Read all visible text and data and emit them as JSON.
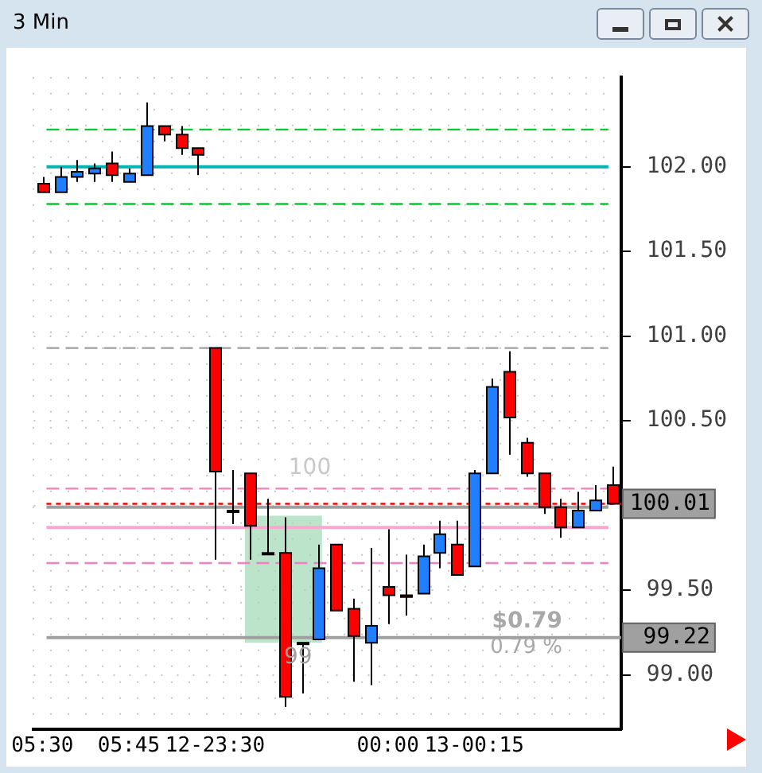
{
  "chart_data": {
    "type": "candlestick",
    "title": "3 Min",
    "categories": [
      "05:30",
      null,
      null,
      null,
      null,
      "05:45",
      null,
      null,
      null,
      null,
      "12-23:30",
      null,
      null,
      null,
      null,
      null,
      null,
      null,
      null,
      null,
      "00:00",
      null,
      null,
      null,
      null,
      "13-00:15",
      null,
      null,
      null,
      null,
      null,
      null,
      null,
      null
    ],
    "ohlc": [
      [
        101.9,
        101.94,
        101.85,
        101.85
      ],
      [
        101.85,
        102.0,
        101.85,
        101.94
      ],
      [
        101.94,
        102.04,
        101.91,
        101.97
      ],
      [
        101.96,
        102.02,
        101.91,
        101.99
      ],
      [
        102.02,
        102.09,
        101.91,
        101.95
      ],
      [
        101.91,
        101.99,
        101.91,
        101.96
      ],
      [
        101.95,
        102.38,
        101.95,
        102.24
      ],
      [
        102.24,
        102.24,
        102.15,
        102.19
      ],
      [
        102.19,
        102.24,
        102.07,
        102.11
      ],
      [
        102.11,
        102.11,
        101.95,
        102.07
      ],
      [
        100.93,
        100.93,
        99.68,
        100.2
      ],
      [
        99.97,
        100.21,
        99.89,
        99.97
      ],
      [
        100.19,
        100.19,
        99.68,
        99.88
      ],
      [
        99.72,
        100.04,
        99.72,
        99.72
      ],
      [
        99.72,
        99.93,
        98.81,
        98.87
      ],
      [
        99.19,
        99.19,
        98.89,
        99.19
      ],
      [
        99.21,
        99.77,
        99.21,
        99.63
      ],
      [
        99.77,
        99.77,
        99.38,
        99.38
      ],
      [
        99.39,
        99.45,
        98.96,
        99.23
      ],
      [
        99.19,
        99.75,
        98.94,
        99.29
      ],
      [
        99.52,
        99.86,
        99.3,
        99.47
      ],
      [
        99.47,
        99.71,
        99.35,
        99.46
      ],
      [
        99.48,
        99.77,
        99.48,
        99.7
      ],
      [
        99.72,
        99.91,
        99.63,
        99.83
      ],
      [
        99.77,
        99.91,
        99.59,
        99.59
      ],
      [
        99.64,
        100.21,
        99.64,
        100.19
      ],
      [
        100.19,
        100.75,
        100.19,
        100.7
      ],
      [
        100.79,
        100.91,
        100.3,
        100.52
      ],
      [
        100.37,
        100.4,
        100.17,
        100.19
      ],
      [
        100.19,
        100.19,
        99.95,
        99.99
      ],
      [
        99.99,
        100.04,
        99.81,
        99.87
      ],
      [
        99.87,
        100.08,
        99.87,
        99.97
      ],
      [
        99.97,
        100.12,
        99.97,
        100.03
      ],
      [
        100.12,
        100.23,
        100.01,
        100.01
      ]
    ],
    "colors": [
      "#ff0000",
      "#1f7fff",
      "#1f7fff",
      "#1f7fff",
      "#ff0000",
      "#1f7fff",
      "#1f7fff",
      "#ff0000",
      "#ff0000",
      "#ff0000",
      "#ff0000",
      "#1f7fff",
      "#ff0000",
      "#ff0000",
      "#ff0000",
      "#1f7fff",
      "#1f7fff",
      "#ff0000",
      "#ff0000",
      "#1f7fff",
      "#ff0000",
      "#ff0000",
      "#1f7fff",
      "#1f7fff",
      "#ff0000",
      "#1f7fff",
      "#1f7fff",
      "#ff0000",
      "#ff0000",
      "#ff0000",
      "#ff0000",
      "#1f7fff",
      "#1f7fff",
      "#ff0000"
    ],
    "ylim": [
      98.68,
      102.53
    ],
    "yticks": [
      {
        "value": 99,
        "label": "99.00"
      },
      {
        "value": 99.5,
        "label": "99.50"
      },
      {
        "value": 100,
        "label": null
      },
      {
        "value": 100.5,
        "label": "100.50"
      },
      {
        "value": 101,
        "label": "101.00"
      },
      {
        "value": 101.5,
        "label": "101.50"
      },
      {
        "value": 102,
        "label": "102.00"
      }
    ],
    "grid": true,
    "ref_lines": [
      {
        "axis": "y",
        "value": 102.22,
        "color": "#00cc33",
        "line_style": "dashed"
      },
      {
        "axis": "y",
        "value": 101.78,
        "color": "#00cc33",
        "line_style": "dashed"
      },
      {
        "axis": "y",
        "value": 102.0,
        "color": "#00b3b3",
        "line_style": "solid"
      },
      {
        "axis": "y",
        "value": 100.93,
        "color": "#a0a0a0",
        "line_style": "dashed"
      },
      {
        "axis": "y",
        "value": 100.1,
        "color": "#f080c0",
        "line_style": "dashed"
      },
      {
        "axis": "y",
        "value": 99.66,
        "color": "#f080c0",
        "line_style": "dashed"
      },
      {
        "axis": "y",
        "value": 99.87,
        "color": "#f8a8d0",
        "line_style": "solid"
      },
      {
        "axis": "y",
        "value": 99.99,
        "color": "#a0a0a0",
        "line_style": "solid"
      },
      {
        "axis": "y",
        "value": 100.01,
        "label": "100.01",
        "color": "#ff0000",
        "line_style": "dotted"
      },
      {
        "axis": "y",
        "value": 99.22,
        "label": "99.22",
        "color": "#a0a0a0",
        "line_style": "solid"
      }
    ],
    "bands": [
      {
        "axis": "y",
        "from": 99.19,
        "to": 99.94,
        "color": "#9ed9b5"
      }
    ],
    "annotations": [
      "100",
      "99",
      "$0.79",
      "0.79 %"
    ]
  }
}
